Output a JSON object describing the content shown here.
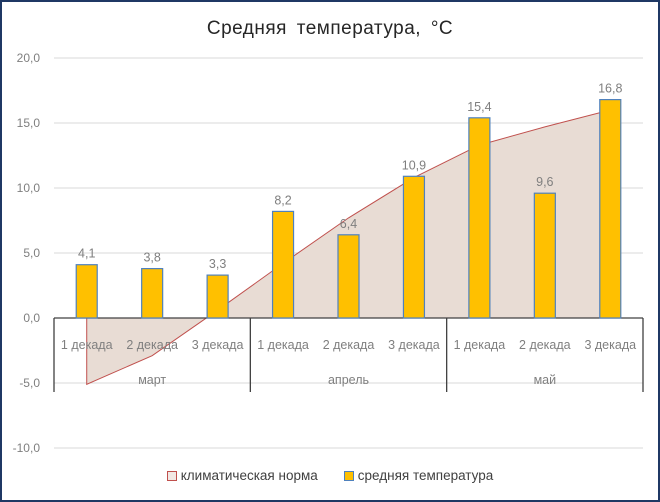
{
  "chart_data": {
    "type": "bar",
    "title": "Средняя температура, °C",
    "xlabel": "",
    "ylabel": "",
    "ylim": [
      -10,
      20
    ],
    "yticks": [
      20,
      15,
      10,
      5,
      0,
      -5,
      -10
    ],
    "ytick_labels": [
      "20,0",
      "15,0",
      "10,0",
      "5,0",
      "0,0",
      "-5,0",
      "-10,0"
    ],
    "grid": true,
    "legend_position": "bottom",
    "groups": [
      {
        "label": "март",
        "categories": [
          "1 декада",
          "2 декада",
          "3 декада"
        ]
      },
      {
        "label": "апрель",
        "categories": [
          "1 декада",
          "2 декада",
          "3 декада"
        ]
      },
      {
        "label": "май",
        "categories": [
          "1 декада",
          "2 декада",
          "3 декада"
        ]
      }
    ],
    "categories": [
      "1 декада",
      "2 декада",
      "3 декада",
      "1 декада",
      "2 декада",
      "3 декада",
      "1 декада",
      "2 декада",
      "3 декада"
    ],
    "series": [
      {
        "name": "климатическая норма",
        "type": "area",
        "color": "#c0504d",
        "fill": "#e8dcd4",
        "values": [
          -5.1,
          -2.9,
          0.6,
          4.2,
          7.7,
          10.8,
          13.3,
          14.7,
          16.0
        ]
      },
      {
        "name": "средняя температура",
        "type": "bar",
        "color": "#ffc000",
        "border": "#4f81bd",
        "values": [
          4.1,
          3.8,
          3.3,
          8.2,
          6.4,
          10.9,
          15.4,
          9.6,
          16.8
        ],
        "data_labels": [
          "4,1",
          "3,8",
          "3,3",
          "8,2",
          "6,4",
          "10,9",
          "15,4",
          "9,6",
          "16,8"
        ]
      }
    ]
  },
  "legend": {
    "items": [
      {
        "label": "климатическая норма",
        "swatch_fill": "#f2e8e4",
        "swatch_border": "#c0504d"
      },
      {
        "label": "средняя температура",
        "swatch_fill": "#ffc000",
        "swatch_border": "#4f81bd"
      }
    ]
  }
}
